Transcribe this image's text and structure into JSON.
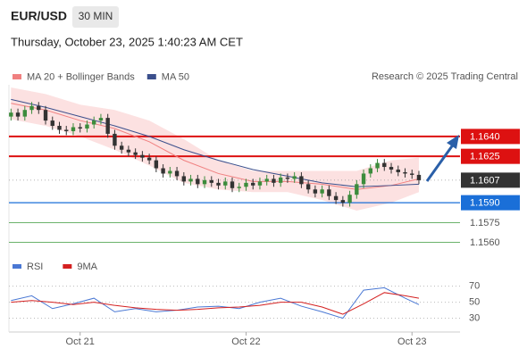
{
  "header": {
    "symbol": "EUR/USD",
    "interval": "30 MIN",
    "timestamp": "Thursday, October 23, 2025 1:40:23 AM CET",
    "credit": "Research © 2025 Trading Central"
  },
  "chart_data": [
    {
      "type": "candlestick",
      "x": [
        0,
        1,
        2,
        3,
        4,
        5,
        6,
        7,
        8,
        9,
        10,
        11,
        12,
        13,
        14,
        15,
        16,
        17,
        18,
        19,
        20,
        21,
        22,
        23,
        24,
        25,
        26,
        27,
        28,
        29,
        30,
        31,
        32,
        33,
        34,
        35,
        36,
        37,
        38,
        39,
        40,
        41,
        42,
        43,
        44,
        45,
        46,
        47,
        48,
        49,
        50,
        51,
        52,
        53,
        54,
        55,
        56,
        57,
        58,
        59
      ],
      "open": [
        1.1655,
        1.1658,
        1.1655,
        1.166,
        1.1663,
        1.166,
        1.1652,
        1.1648,
        1.1645,
        1.1644,
        1.1647,
        1.1646,
        1.1649,
        1.1652,
        1.1654,
        1.1642,
        1.1633,
        1.163,
        1.1628,
        1.1626,
        1.1624,
        1.1622,
        1.1616,
        1.1612,
        1.1614,
        1.161,
        1.1606,
        1.1608,
        1.1604,
        1.1607,
        1.1605,
        1.1603,
        1.1606,
        1.1601,
        1.1602,
        1.1605,
        1.1603,
        1.1606,
        1.1608,
        1.1605,
        1.1609,
        1.1608,
        1.161,
        1.1604,
        1.16,
        1.1597,
        1.16,
        1.1595,
        1.1592,
        1.159,
        1.1596,
        1.1604,
        1.1612,
        1.1616,
        1.162,
        1.1617,
        1.1615,
        1.1613,
        1.1612,
        1.1611
      ],
      "high": [
        1.1661,
        1.1661,
        1.1663,
        1.1666,
        1.1666,
        1.1663,
        1.1655,
        1.1651,
        1.1648,
        1.165,
        1.165,
        1.1652,
        1.1655,
        1.1657,
        1.1657,
        1.1645,
        1.1636,
        1.1633,
        1.1631,
        1.1629,
        1.1627,
        1.1625,
        1.1619,
        1.1617,
        1.1617,
        1.1613,
        1.1611,
        1.1611,
        1.161,
        1.161,
        1.1608,
        1.1609,
        1.1609,
        1.1605,
        1.1608,
        1.1608,
        1.1609,
        1.1611,
        1.1611,
        1.1612,
        1.1612,
        1.1613,
        1.1613,
        1.1607,
        1.1603,
        1.1603,
        1.1603,
        1.1598,
        1.1595,
        1.1599,
        1.1607,
        1.1615,
        1.1619,
        1.1623,
        1.1623,
        1.162,
        1.1618,
        1.1616,
        1.1615,
        1.1614
      ],
      "low": [
        1.1652,
        1.1652,
        1.1652,
        1.1657,
        1.1657,
        1.1649,
        1.1645,
        1.1642,
        1.1641,
        1.1641,
        1.1643,
        1.1643,
        1.1646,
        1.1649,
        1.1639,
        1.163,
        1.1627,
        1.1625,
        1.1623,
        1.1621,
        1.1619,
        1.1613,
        1.1609,
        1.1609,
        1.1607,
        1.1603,
        1.1603,
        1.1601,
        1.1601,
        1.1602,
        1.16,
        1.16,
        1.1598,
        1.1598,
        1.1599,
        1.16,
        1.16,
        1.1603,
        1.1602,
        1.1602,
        1.1605,
        1.1605,
        1.1601,
        1.1597,
        1.1594,
        1.1594,
        1.1592,
        1.1589,
        1.1587,
        1.1587,
        1.1593,
        1.1601,
        1.1609,
        1.1613,
        1.1614,
        1.1612,
        1.161,
        1.1609,
        1.1608,
        1.1604
      ],
      "close": [
        1.1658,
        1.1655,
        1.166,
        1.1663,
        1.166,
        1.1652,
        1.1648,
        1.1645,
        1.1644,
        1.1647,
        1.1646,
        1.1649,
        1.1652,
        1.1654,
        1.1642,
        1.1633,
        1.163,
        1.1628,
        1.1626,
        1.1624,
        1.1622,
        1.1616,
        1.1612,
        1.1614,
        1.161,
        1.1606,
        1.1608,
        1.1604,
        1.1607,
        1.1605,
        1.1603,
        1.1606,
        1.1601,
        1.1602,
        1.1605,
        1.1603,
        1.1606,
        1.1608,
        1.1605,
        1.1609,
        1.1608,
        1.161,
        1.1604,
        1.16,
        1.1597,
        1.16,
        1.1595,
        1.1592,
        1.159,
        1.1596,
        1.1604,
        1.1612,
        1.1616,
        1.162,
        1.1617,
        1.1615,
        1.1613,
        1.1612,
        1.1611,
        1.1607
      ],
      "up_color": "#3c8c3c",
      "down_color": "#333333",
      "xlim": [
        -0.3,
        64.3
      ],
      "ylim": [
        1.1551,
        1.1679
      ],
      "overlays": [
        {
          "name": "MA 20 + Bollinger Bands",
          "color": "#f08080",
          "band_color": "#fbd4d4",
          "x": [
            0,
            5,
            10,
            15,
            20,
            25,
            30,
            35,
            40,
            45,
            50,
            55,
            59
          ],
          "values": [
            1.1665,
            1.166,
            1.1652,
            1.1646,
            1.1636,
            1.1622,
            1.1612,
            1.1606,
            1.1606,
            1.1604,
            1.16,
            1.1603,
            1.1608
          ],
          "upper": [
            1.1677,
            1.1672,
            1.1664,
            1.166,
            1.1652,
            1.1638,
            1.1622,
            1.1614,
            1.1614,
            1.1614,
            1.1614,
            1.1622,
            1.1624
          ],
          "lower": [
            1.1653,
            1.1648,
            1.164,
            1.163,
            1.1618,
            1.1605,
            1.16,
            1.1598,
            1.1598,
            1.1592,
            1.1584,
            1.159,
            1.1598
          ]
        },
        {
          "name": "MA 50",
          "color": "#3b4f8c",
          "x": [
            0,
            5,
            10,
            15,
            20,
            25,
            30,
            35,
            40,
            45,
            50,
            55,
            59
          ],
          "values": [
            1.1668,
            1.1662,
            1.1655,
            1.1648,
            1.164,
            1.163,
            1.1622,
            1.1615,
            1.161,
            1.1605,
            1.1602,
            1.1603,
            1.1604
          ]
        }
      ],
      "levels": [
        {
          "value": 1.164,
          "label": "1.1640",
          "color": "#dd1111",
          "style": "box"
        },
        {
          "value": 1.1625,
          "label": "1.1625",
          "color": "#dd1111",
          "style": "box"
        },
        {
          "value": 1.1607,
          "label": "1.1607",
          "color": "#333333",
          "style": "current"
        },
        {
          "value": 1.159,
          "label": "1.1590",
          "color": "#1a6fd8",
          "style": "box"
        },
        {
          "value": 1.1575,
          "label": "1.1575",
          "color": "#3a9a3a",
          "style": "text"
        },
        {
          "value": 1.156,
          "label": "1.1560",
          "color": "#3a9a3a",
          "style": "text"
        }
      ]
    },
    {
      "type": "line",
      "xlim": [
        -0.3,
        64.3
      ],
      "ylim": [
        15,
        93
      ],
      "yticks": [
        30,
        50,
        70
      ],
      "xticks": [
        {
          "value": 10,
          "label": "Oct 21"
        },
        {
          "value": 34,
          "label": "Oct 22"
        },
        {
          "value": 58,
          "label": "Oct 23"
        }
      ],
      "series": [
        {
          "name": "RSI",
          "color": "#4a78d4",
          "x": [
            0,
            3,
            6,
            9,
            12,
            15,
            18,
            21,
            24,
            27,
            30,
            33,
            36,
            39,
            42,
            45,
            48,
            51,
            54,
            57,
            59
          ],
          "values": [
            52,
            58,
            42,
            48,
            55,
            38,
            42,
            38,
            40,
            44,
            45,
            42,
            50,
            55,
            45,
            38,
            30,
            65,
            68,
            55,
            47
          ]
        },
        {
          "name": "9MA",
          "color": "#d42020",
          "x": [
            0,
            3,
            6,
            9,
            12,
            15,
            18,
            21,
            24,
            27,
            30,
            33,
            36,
            39,
            42,
            45,
            48,
            51,
            54,
            57,
            59
          ],
          "values": [
            50,
            52,
            50,
            47,
            50,
            46,
            43,
            41,
            40,
            41,
            43,
            44,
            46,
            50,
            50,
            44,
            35,
            48,
            62,
            58,
            55
          ]
        }
      ]
    }
  ]
}
